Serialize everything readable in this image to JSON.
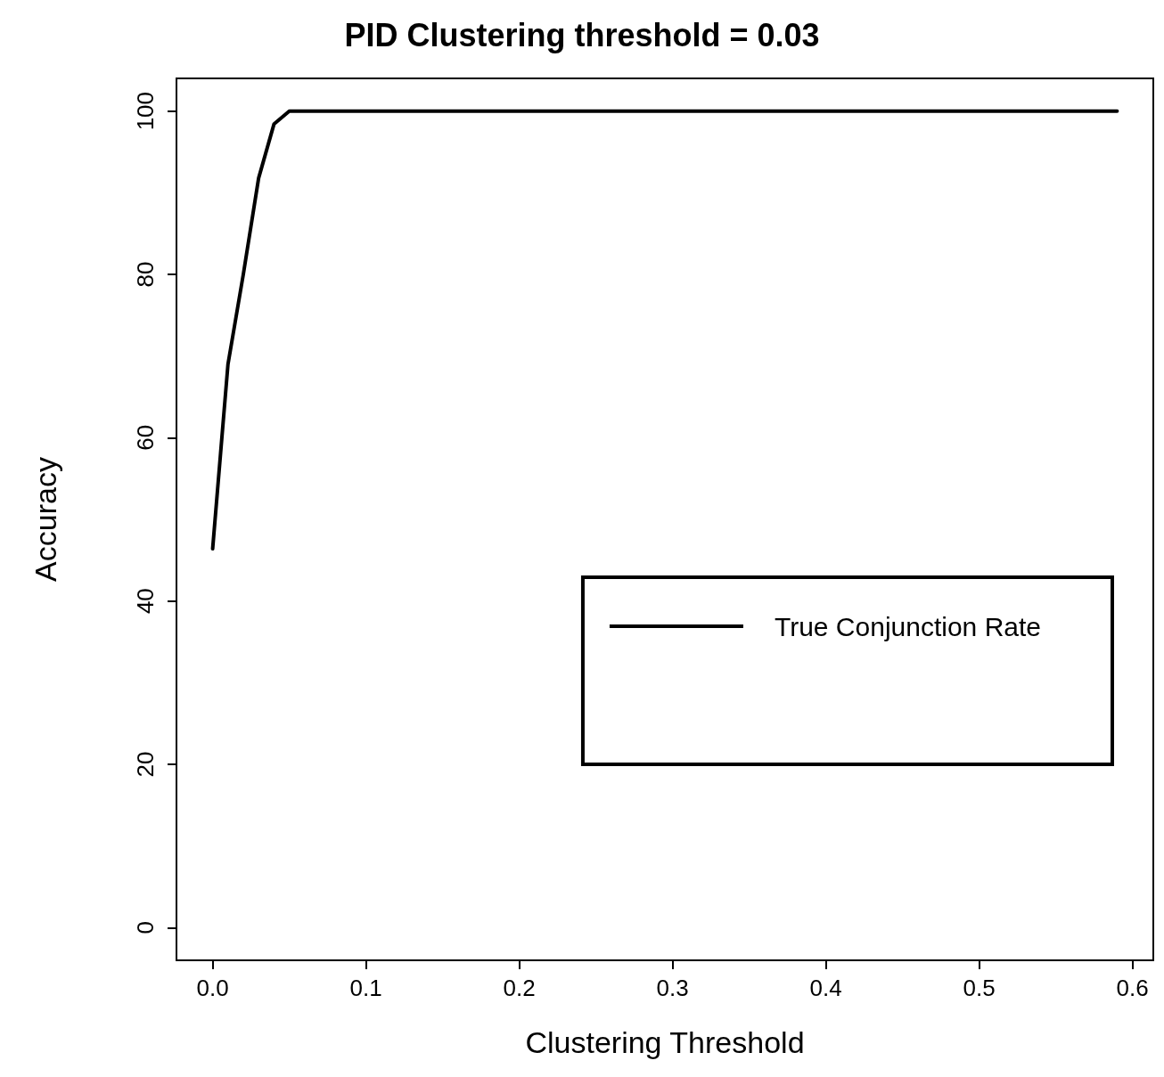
{
  "chart_data": {
    "type": "line",
    "title": "PID Clustering threshold = 0.03",
    "xlabel": "Clustering Threshold",
    "ylabel": "Accuracy",
    "series": [
      {
        "name": "True Conjunction Rate",
        "color": "#000000",
        "x": [
          0,
          0.01,
          0.02,
          0.03,
          0.04,
          0.05,
          0.59
        ],
        "values": [
          46.4,
          69,
          80,
          91.8,
          98.4,
          100,
          100
        ]
      }
    ],
    "xlim": [
      -0.0236,
      0.6136
    ],
    "xticks": [
      {
        "value": 0,
        "label": "0.0"
      },
      0.1,
      0.2,
      0.3,
      0.4,
      0.5,
      0.6
    ],
    "ylim": [
      -4,
      104
    ],
    "yticks": [
      0,
      20,
      40,
      60,
      80,
      100
    ],
    "grid": false,
    "legend": "right",
    "marker": "none",
    "line_style": "solid"
  }
}
